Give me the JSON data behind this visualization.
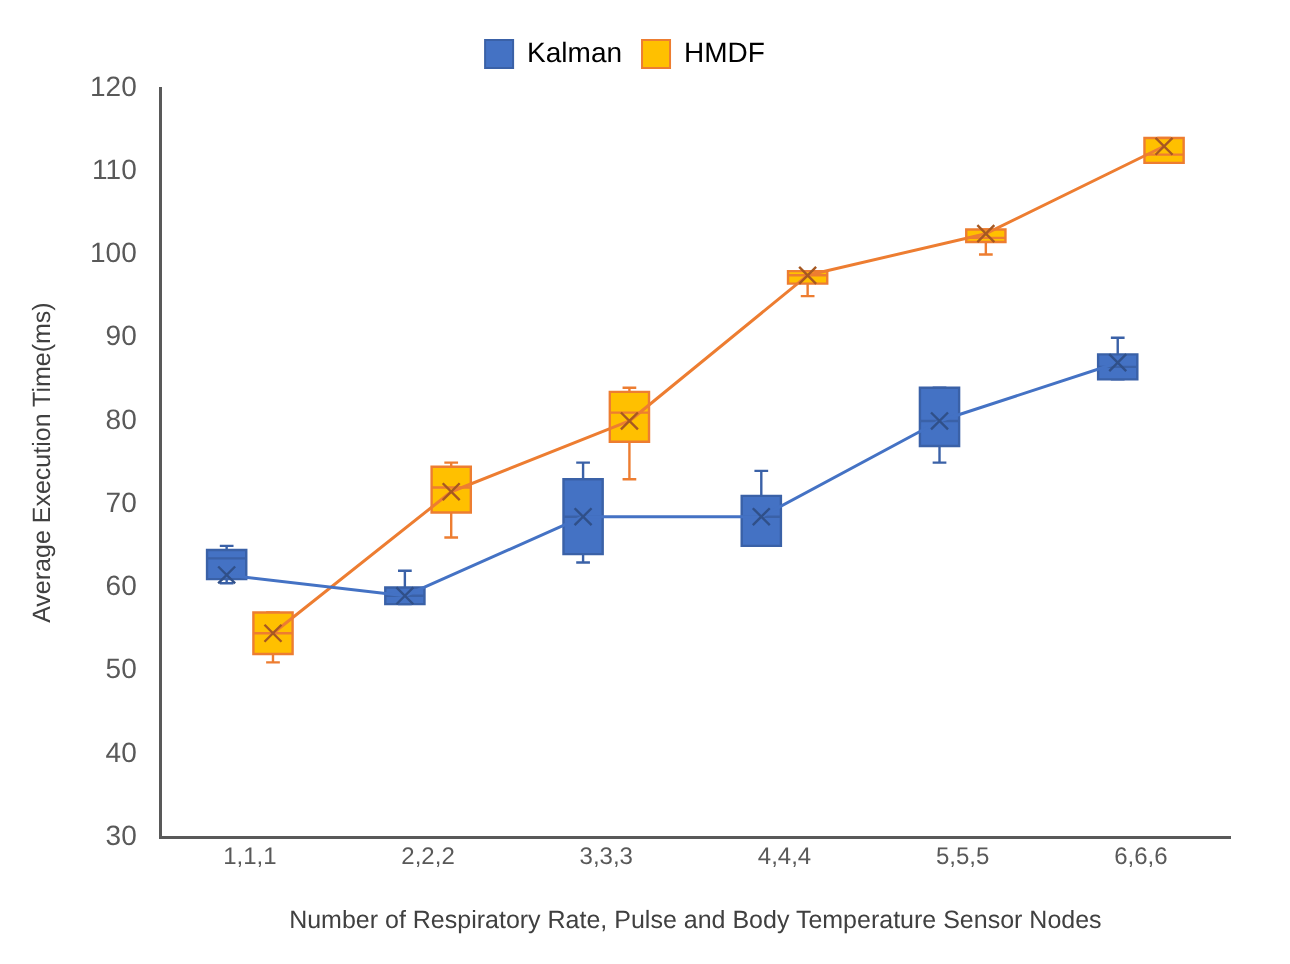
{
  "chart_data": {
    "type": "box",
    "xlabel": "Number of Respiratory Rate, Pulse and Body Temperature Sensor Nodes",
    "ylabel": "Average Execution Time(ms)",
    "categories": [
      "1,1,1",
      "2,2,2",
      "3,3,3",
      "4,4,4",
      "5,5,5",
      "6,6,6"
    ],
    "ylim": [
      30,
      120
    ],
    "yticks": [
      30,
      40,
      50,
      60,
      70,
      80,
      90,
      100,
      110,
      120
    ],
    "grid": false,
    "legend": "top",
    "marker": "cross",
    "series": [
      {
        "name": "Kalman",
        "color": "#4472c4",
        "boxes": [
          {
            "low": 60.5,
            "q1": 61,
            "median": 63.5,
            "q3": 64.5,
            "high": 65
          },
          {
            "low": 58,
            "q1": 58,
            "median": 59,
            "q3": 60,
            "high": 62
          },
          {
            "low": 63,
            "q1": 64,
            "median": 68.5,
            "q3": 73,
            "high": 75
          },
          {
            "low": 65,
            "q1": 65,
            "median": 68.5,
            "q3": 71,
            "high": 74
          },
          {
            "low": 75,
            "q1": 77,
            "median": 80,
            "q3": 84,
            "high": 84
          },
          {
            "low": 85,
            "q1": 85,
            "median": 86.5,
            "q3": 88,
            "high": 90
          }
        ]
      },
      {
        "name": "HMDF",
        "color": "#ffc000",
        "boxes": [
          {
            "low": 51,
            "q1": 52,
            "median": 54.5,
            "q3": 57,
            "high": 57
          },
          {
            "low": 66,
            "q1": 69,
            "median": 72,
            "q3": 74.5,
            "high": 75
          },
          {
            "low": 73,
            "q1": 77.5,
            "median": 81,
            "q3": 83.5,
            "high": 84
          },
          {
            "low": 95,
            "q1": 96.5,
            "median": 97.5,
            "q3": 98,
            "high": 98
          },
          {
            "low": 100,
            "q1": 101.5,
            "median": 102,
            "q3": 103,
            "high": 103
          },
          {
            "low": 111,
            "q1": 111,
            "median": 112,
            "q3": 114,
            "high": 114
          }
        ]
      },
      {
        "type": "line",
        "color": "#4472c4",
        "values": [
          61.5,
          59,
          68.5,
          68.5,
          80,
          87
        ]
      },
      {
        "type": "line",
        "color": "#ed7d31",
        "values": [
          54.5,
          71.5,
          80,
          97.5,
          102.5,
          113
        ]
      }
    ]
  }
}
